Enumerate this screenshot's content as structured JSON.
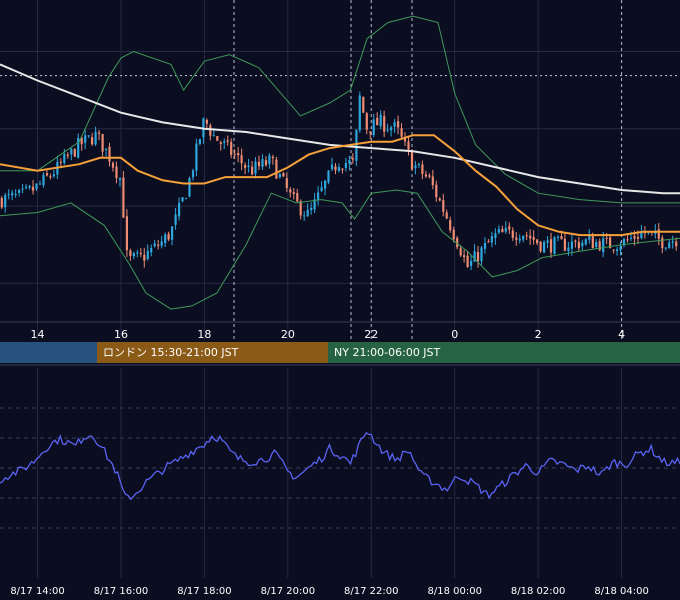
{
  "colors": {
    "background": "#0b0d21",
    "grid": "#252a44",
    "up_candle": "#2ea7dc",
    "down_candle": "#ef8c72",
    "bollinger": "#3f9a5a",
    "ma_short": "#f6a03a",
    "ma_long": "#e8e8e8",
    "oscillator": "#5a63f2",
    "axis_text": "#ffffff"
  },
  "sessions": [
    {
      "label": "",
      "color": "#27517f"
    },
    {
      "label": "ロンドン 15:30-21:00 JST",
      "color": "#8a5a16"
    },
    {
      "label": "NY 21:00-06:00 JST",
      "color": "#256342"
    }
  ],
  "chart_data": [
    {
      "type": "candlestick",
      "title": "",
      "x_axis_labels": [
        "14",
        "16",
        "18",
        "20",
        "22",
        "0",
        "2",
        "4"
      ],
      "x_hours": [
        14,
        16,
        18,
        20,
        22,
        24,
        26,
        28
      ],
      "x_range_hours": [
        13.1,
        29.4
      ],
      "y_range": [
        0,
        100
      ],
      "y_axis_visible": false,
      "grid": true,
      "candle_interval_minutes": 5,
      "series": [
        {
          "name": "",
          "style": "candles",
          "close_path_hours": [
            13.1,
            13.6,
            14.0,
            14.5,
            15.0,
            15.4,
            15.7,
            16.0,
            16.15,
            16.5,
            17.0,
            17.2,
            17.6,
            18.0,
            18.2,
            18.7,
            19.1,
            19.6,
            20.1,
            20.5,
            20.9,
            21.2,
            21.6,
            21.7,
            21.9,
            22.2,
            22.6,
            23.0,
            23.4,
            23.8,
            24.1,
            24.3,
            24.5,
            25.0,
            25.6,
            26.1,
            26.6,
            27.2,
            27.7,
            28.1,
            28.5,
            29.0,
            29.4
          ],
          "close_path_values": [
            38,
            39,
            42,
            48,
            55,
            58,
            52,
            44,
            19,
            20,
            25,
            28,
            42,
            63,
            58,
            52,
            47,
            50,
            38,
            33,
            43,
            50,
            49,
            71,
            60,
            62,
            60,
            49,
            44,
            33,
            24,
            17,
            20,
            27,
            28,
            24,
            24,
            25,
            24,
            25,
            28,
            25,
            26
          ]
        },
        {
          "name": "",
          "style": "bollinger_upper",
          "x_hours": [
            13.1,
            14.0,
            15.0,
            15.7,
            16.0,
            16.3,
            17.2,
            17.5,
            18.0,
            18.6,
            19.3,
            20.3,
            21.0,
            21.5,
            21.9,
            22.4,
            23.0,
            23.6,
            24.0,
            24.5,
            25.2,
            26.0,
            27.0,
            28.0,
            29.4
          ],
          "values": [
            47,
            47,
            56,
            76,
            82,
            84,
            80,
            72,
            81,
            83,
            79,
            64,
            68,
            72,
            88,
            93,
            95,
            93,
            71,
            55,
            46,
            40,
            38,
            37,
            37
          ]
        },
        {
          "name": "",
          "style": "bollinger_lower",
          "x_hours": [
            13.1,
            14.0,
            14.8,
            15.6,
            16.2,
            16.6,
            17.2,
            17.7,
            18.3,
            19.0,
            19.6,
            20.2,
            20.8,
            21.3,
            21.6,
            22.0,
            22.6,
            23.1,
            23.7,
            24.3,
            24.9,
            25.5,
            26.1,
            27.0,
            28.0,
            29.4
          ],
          "values": [
            33,
            34,
            37,
            30,
            18,
            9,
            4,
            5,
            9,
            24,
            40,
            37,
            38,
            37,
            32,
            40,
            41,
            40,
            28,
            22,
            14,
            16,
            20,
            22,
            24,
            26
          ]
        },
        {
          "name": "",
          "style": "ma_short",
          "x_hours": [
            13.1,
            14.0,
            15.0,
            15.5,
            16.0,
            16.4,
            17.0,
            17.5,
            18.0,
            18.5,
            19.0,
            19.5,
            20.0,
            20.5,
            21.0,
            21.5,
            22.0,
            22.5,
            23.0,
            23.5,
            24.0,
            24.5,
            25.0,
            25.5,
            26.0,
            26.5,
            27.0,
            27.5,
            28.0,
            28.5,
            29.0,
            29.4
          ],
          "values": [
            49,
            47,
            49,
            51,
            51,
            47,
            44,
            43,
            43,
            45,
            45,
            45,
            48,
            52,
            54,
            55,
            56,
            56,
            58,
            58,
            53,
            47,
            42,
            35,
            30,
            28,
            27,
            27,
            27,
            28,
            28,
            28
          ]
        },
        {
          "name": "",
          "style": "ma_long",
          "x_hours": [
            13.1,
            14.0,
            15.0,
            16.0,
            17.0,
            18.0,
            19.0,
            20.0,
            21.0,
            22.0,
            23.0,
            24.0,
            25.0,
            26.0,
            27.0,
            28.0,
            29.0,
            29.4
          ],
          "values": [
            80,
            75,
            70,
            65,
            62,
            60,
            59,
            57,
            55,
            54,
            53,
            51,
            48,
            45,
            43,
            41,
            40,
            40
          ]
        }
      ]
    },
    {
      "type": "line",
      "title": "",
      "x_axis_labels": [
        "8/17 14:00",
        "8/17 16:00",
        "8/17 18:00",
        "8/17 20:00",
        "8/17 22:00",
        "8/18 00:00",
        "8/18 02:00",
        "8/18 04:00"
      ],
      "x_hours": [
        14,
        16,
        18,
        20,
        22,
        24,
        26,
        28
      ],
      "x_range_hours": [
        13.1,
        29.4
      ],
      "y_range": [
        0,
        100
      ],
      "y_axis_visible": false,
      "grid": true,
      "series": [
        {
          "name": "",
          "x_hours": [
            13.1,
            13.3,
            13.6,
            13.9,
            14.2,
            14.5,
            14.7,
            14.9,
            15.1,
            15.3,
            15.5,
            15.7,
            15.9,
            16.1,
            16.3,
            16.6,
            16.9,
            17.1,
            17.4,
            17.7,
            18.0,
            18.2,
            18.4,
            18.6,
            18.8,
            19.1,
            19.4,
            19.7,
            20.0,
            20.2,
            20.5,
            20.8,
            21.0,
            21.3,
            21.5,
            21.7,
            21.9,
            22.1,
            22.3,
            22.6,
            22.9,
            23.2,
            23.5,
            23.8,
            24.1,
            24.3,
            24.5,
            24.8,
            25.1,
            25.4,
            25.7,
            26.0,
            26.3,
            26.6,
            26.9,
            27.2,
            27.5,
            27.8,
            28.1,
            28.4,
            28.7,
            29.0,
            29.2,
            29.4
          ],
          "values": [
            40,
            44,
            48,
            55,
            67,
            74,
            72,
            68,
            76,
            78,
            70,
            58,
            46,
            25,
            27,
            38,
            46,
            51,
            57,
            64,
            70,
            77,
            74,
            64,
            58,
            55,
            57,
            62,
            47,
            42,
            50,
            58,
            66,
            60,
            54,
            68,
            82,
            72,
            63,
            57,
            65,
            44,
            38,
            32,
            44,
            40,
            36,
            27,
            35,
            44,
            52,
            46,
            56,
            53,
            48,
            52,
            44,
            55,
            53,
            62,
            66,
            55,
            54,
            55
          ]
        }
      ]
    }
  ]
}
